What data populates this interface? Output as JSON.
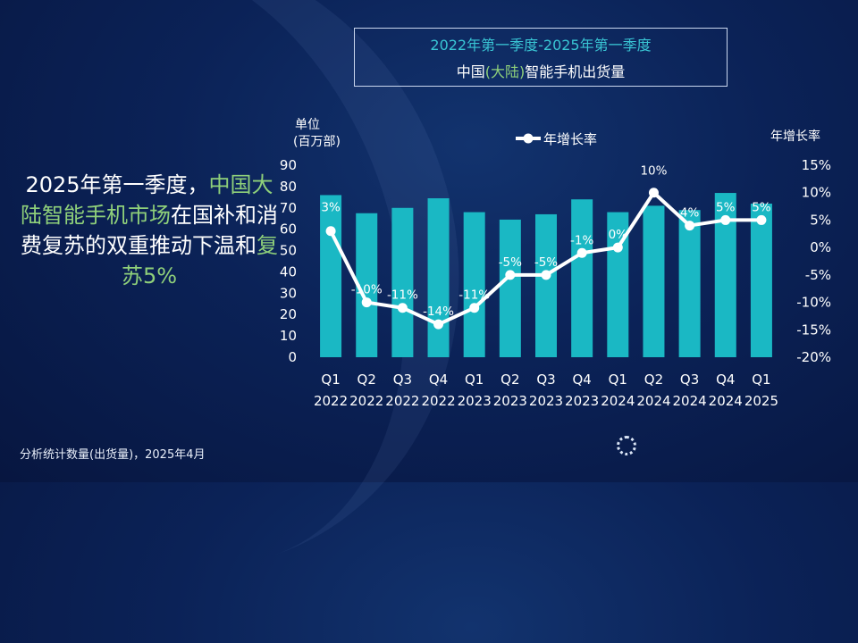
{
  "header": {
    "title_line1": "2022年第一季度-2025年第一季度",
    "title_line2_pre": "中国",
    "title_line2_hl": "(大陆)",
    "title_line2_post": "智能手机出货量"
  },
  "headline": {
    "part1": "2025年第一季度，",
    "part2": "中国大陆智能手机",
    "part3": "市场",
    "part4": "在国补和消费复苏的双重推动下温和",
    "part5": "复苏5%"
  },
  "footer": {
    "source": "分析统计数量(出货量)，2025年4月"
  },
  "colors": {
    "bar": "#1ab8c4",
    "line": "#ffffff",
    "accent_green": "#8fd07a",
    "accent_cyan": "#39c5d4"
  },
  "chart_data": {
    "type": "bar",
    "categories": [
      "Q1 2022",
      "Q2 2022",
      "Q3 2022",
      "Q4 2022",
      "Q1 2023",
      "Q2 2023",
      "Q3 2023",
      "Q4 2023",
      "Q1 2024",
      "Q2 2024",
      "Q3 2024",
      "Q4 2024",
      "Q1 2025"
    ],
    "x_ticks_top": [
      "Q1",
      "Q2",
      "Q3",
      "Q4",
      "Q1",
      "Q2",
      "Q3",
      "Q4",
      "Q1",
      "Q2",
      "Q3",
      "Q4",
      "Q1"
    ],
    "x_ticks_bottom": [
      "2022",
      "2022",
      "2022",
      "2022",
      "2023",
      "2023",
      "2023",
      "2023",
      "2024",
      "2024",
      "2024",
      "2024",
      "2025"
    ],
    "ylabel_line1": "单位",
    "ylabel_line2": "(百万部)",
    "y2label": "年增长率",
    "ylim": [
      0,
      90
    ],
    "yticks": [
      0,
      10,
      20,
      30,
      40,
      50,
      60,
      70,
      80,
      90
    ],
    "y2lim": [
      -20,
      15
    ],
    "y2ticks": [
      "15%",
      "10%",
      "5%",
      "0%",
      "-5%",
      "-10%",
      "-15%",
      "-20%"
    ],
    "y2tick_values": [
      15,
      10,
      5,
      0,
      -5,
      -10,
      -15,
      -20
    ],
    "legend_label": "年增长率",
    "series": [
      {
        "type": "bar",
        "values": [
          76,
          67.5,
          70,
          74.5,
          68,
          64.5,
          67,
          74,
          68,
          71,
          69,
          77,
          72
        ]
      },
      {
        "type": "line",
        "name": "年增长率",
        "values": [
          3,
          -10,
          -11,
          -14,
          -11,
          -5,
          -5,
          -1,
          0,
          10,
          4,
          5,
          5
        ],
        "labels": [
          "3%",
          "-10%",
          "-11%",
          "-14%",
          "-11%",
          "-5%",
          "-5%",
          "-1%",
          "0%",
          "10%",
          "4%",
          "5%",
          "5%"
        ]
      }
    ]
  }
}
